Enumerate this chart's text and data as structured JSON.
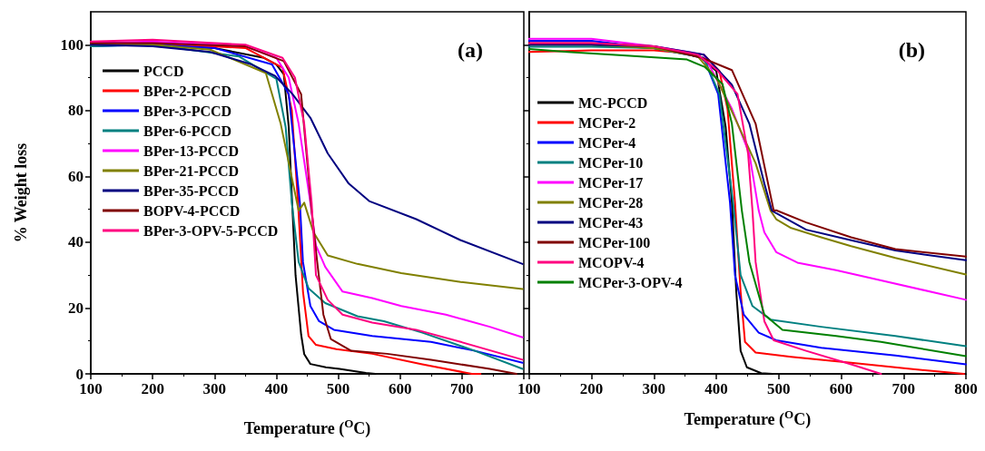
{
  "chart_data": [
    {
      "type": "line",
      "title": "(a)",
      "xlabel": "Temperature ($^{O}$C)",
      "ylabel": "% Weight loss",
      "xlim": [
        100,
        800
      ],
      "xticks": [
        100,
        200,
        300,
        400,
        500,
        600,
        700,
        {
          "value": 800,
          "label": null
        }
      ],
      "ylim": [
        0,
        110
      ],
      "yticks": [
        0,
        20,
        40,
        60,
        80,
        100
      ],
      "grid": false,
      "legend": "top left",
      "marker": "none",
      "line_style": "solid",
      "series": [
        {
          "name": "PCCD",
          "color": "#000000",
          "x": [
            100,
            200,
            300,
            380,
            400,
            412,
            420,
            426,
            431,
            440,
            445,
            455,
            480,
            502,
            545,
            560
          ],
          "values": [
            100,
            100,
            99,
            96,
            94,
            91,
            75,
            50,
            30,
            12,
            6,
            3,
            2,
            1.5,
            0.3,
            0
          ]
        },
        {
          "name": "BPer-2-PCCD",
          "color": "#ff0000",
          "x": [
            100,
            200,
            350,
            410,
            425,
            435,
            443,
            452,
            464,
            497,
            555,
            636,
            716,
            730
          ],
          "values": [
            100.5,
            100.5,
            99,
            93,
            80,
            52,
            25,
            11.5,
            8.8,
            7.5,
            6.1,
            2.9,
            0,
            0
          ]
        },
        {
          "name": "BPer-3-PCCD",
          "color": "#0000ff",
          "x": [
            100,
            200,
            300,
            393,
            420,
            438,
            443,
            455,
            469,
            493,
            555,
            650,
            721,
            798
          ],
          "values": [
            99.5,
            100,
            99,
            94,
            85,
            52,
            34,
            20.6,
            16,
            13.4,
            11.5,
            9.7,
            7,
            3.4
          ]
        },
        {
          "name": "BPer-6-PCCD",
          "color": "#008080",
          "x": [
            100,
            200,
            340,
            400,
            415,
            425,
            436,
            452,
            479,
            531,
            574,
            636,
            721,
            798
          ],
          "values": [
            99.5,
            100,
            96.4,
            89.6,
            75,
            52,
            34,
            26,
            21.5,
            17.5,
            16,
            12.5,
            7,
            1.5
          ]
        },
        {
          "name": "BPer-13-PCCD",
          "color": "#ff00ff",
          "x": [
            100,
            200,
            350,
            400,
            420,
            436,
            455,
            464,
            479,
            507,
            555,
            602,
            674,
            745,
            798
          ],
          "values": [
            100.5,
            101,
            99.5,
            96,
            90,
            76,
            52,
            39,
            32.5,
            25,
            23,
            20.6,
            18,
            14.3,
            11.1
          ]
        },
        {
          "name": "BPer-21-PCCD",
          "color": "#808000",
          "x": [
            100,
            200,
            293,
            383,
            407,
            436,
            445,
            460,
            483,
            531,
            602,
            698,
            798
          ],
          "values": [
            100,
            100,
            98.5,
            91.4,
            76,
            49.6,
            52,
            43,
            36,
            33.4,
            30.6,
            27.9,
            25.8
          ]
        },
        {
          "name": "BPer-35-PCCD",
          "color": "#000080",
          "x": [
            100,
            200,
            293,
            360,
            398,
            426,
            455,
            483,
            517,
            550,
            626,
            698,
            798
          ],
          "values": [
            100,
            99.5,
            97.8,
            94,
            90.5,
            85,
            77.8,
            67,
            57.8,
            52.5,
            47,
            40.6,
            33.4
          ]
        },
        {
          "name": "BOPV-4-PCCD",
          "color": "#800000",
          "x": [
            100,
            200,
            350,
            412,
            440,
            457,
            466,
            476,
            488,
            521,
            579,
            650,
            745,
            788
          ],
          "values": [
            100.5,
            100.5,
            99.5,
            95,
            85,
            49.6,
            34,
            18,
            10.6,
            7,
            6.1,
            4.3,
            1.5,
            0
          ]
        },
        {
          "name": "BPer-3-OPV-5-PCCD",
          "color": "#ff0080",
          "x": [
            100,
            200,
            350,
            410,
            430,
            445,
            457,
            464,
            483,
            507,
            555,
            626,
            698,
            798
          ],
          "values": [
            101,
            101.5,
            100,
            96,
            90,
            76,
            52,
            30,
            22.5,
            18,
            15.6,
            13.4,
            9.7,
            4.3
          ]
        }
      ]
    },
    {
      "type": "line",
      "title": "(b)",
      "xlabel": "Temperature ($^{O}$C)",
      "xlim": [
        100,
        800
      ],
      "xticks": [
        100,
        200,
        300,
        400,
        500,
        600,
        700,
        800
      ],
      "ylim": [
        0,
        110
      ],
      "yticks": [
        0,
        20,
        40,
        60,
        80,
        100
      ],
      "tick_labels": "x",
      "grid": false,
      "legend": "left",
      "marker": "none",
      "line_style": "solid",
      "series": [
        {
          "name": "MC-PCCD",
          "color": "#000000",
          "x": [
            100,
            200,
            300,
            370,
            400,
            415,
            425,
            432,
            439,
            449,
            472,
            490
          ],
          "values": [
            100,
            100,
            99,
            97,
            92,
            75,
            52,
            25,
            7,
            2,
            0.2,
            0
          ]
        },
        {
          "name": "MCPer-2",
          "color": "#ff0000",
          "x": [
            100,
            200,
            300,
            380,
            405,
            418,
            430,
            439,
            446,
            463,
            520,
            616,
            711,
            797
          ],
          "values": [
            97.8,
            98.3,
            98.3,
            97,
            92,
            80.5,
            52,
            25,
            9.7,
            6.5,
            5.2,
            3.4,
            1.5,
            0
          ]
        },
        {
          "name": "MCPer-4",
          "color": "#0000ff",
          "x": [
            100,
            200,
            300,
            380,
            403,
            422,
            430,
            444,
            468,
            496,
            568,
            687,
            800
          ],
          "values": [
            101.2,
            101.2,
            99,
            96,
            85,
            52,
            30,
            18,
            12.5,
            10.2,
            7.9,
            5.6,
            2.9
          ]
        },
        {
          "name": "MCPer-10",
          "color": "#008080",
          "x": [
            100,
            200,
            300,
            380,
            405,
            427,
            439,
            458,
            487,
            568,
            687,
            800
          ],
          "values": [
            99.4,
            99.4,
            99,
            96,
            85,
            52,
            30,
            20.6,
            16.5,
            14.3,
            11.5,
            8.4
          ]
        },
        {
          "name": "MCPer-17",
          "color": "#ff00ff",
          "x": [
            100,
            200,
            300,
            380,
            425,
            453,
            468,
            477,
            496,
            530,
            592,
            664,
            800
          ],
          "values": [
            101.8,
            101.8,
            99.5,
            97,
            80.5,
            66.8,
            49.6,
            43,
            37,
            33.8,
            31.5,
            28.4,
            22.5
          ]
        },
        {
          "name": "MCPer-28",
          "color": "#808000",
          "x": [
            100,
            200,
            300,
            370,
            401,
            434,
            463,
            487,
            496,
            520,
            568,
            616,
            687,
            800
          ],
          "values": [
            100,
            100,
            99,
            96.5,
            89.6,
            76,
            64,
            49.6,
            47,
            44.3,
            41.5,
            38.8,
            35.2,
            30.2
          ]
        },
        {
          "name": "MCPer-43",
          "color": "#000080",
          "x": [
            100,
            200,
            300,
            380,
            425,
            453,
            477,
            489,
            496,
            544,
            616,
            687,
            800
          ],
          "values": [
            100,
            100,
            99.5,
            97,
            87.8,
            76,
            57.8,
            49.6,
            48.8,
            43.8,
            40.6,
            37.5,
            34.5
          ]
        },
        {
          "name": "MCPer-100",
          "color": "#800000",
          "x": [
            100,
            200,
            300,
            377,
            425,
            463,
            492,
            496,
            544,
            616,
            687,
            800
          ],
          "values": [
            100.5,
            100.5,
            99.5,
            96,
            92.3,
            76,
            49.6,
            49.7,
            46,
            41.5,
            37.9,
            35.6
          ]
        },
        {
          "name": "MCOPV-4",
          "color": "#ff0080",
          "x": [
            100,
            200,
            300,
            370,
            401,
            434,
            451,
            458,
            463,
            477,
            492,
            544,
            616,
            664
          ],
          "values": [
            100.5,
            100.5,
            99.5,
            97,
            92.3,
            85,
            66.8,
            49.6,
            34,
            16,
            10.2,
            7,
            2.9,
            0
          ]
        },
        {
          "name": "MCPer-3-OPV-4",
          "color": "#008000",
          "x": [
            100,
            162,
            250,
            353,
            382,
            410,
            425,
            441,
            453,
            477,
            506,
            592,
            664,
            800
          ],
          "values": [
            98.7,
            97.8,
            96.8,
            95.5,
            93.2,
            88,
            76,
            49.6,
            34,
            18,
            13.4,
            11.5,
            9.7,
            5.4
          ]
        }
      ]
    }
  ]
}
